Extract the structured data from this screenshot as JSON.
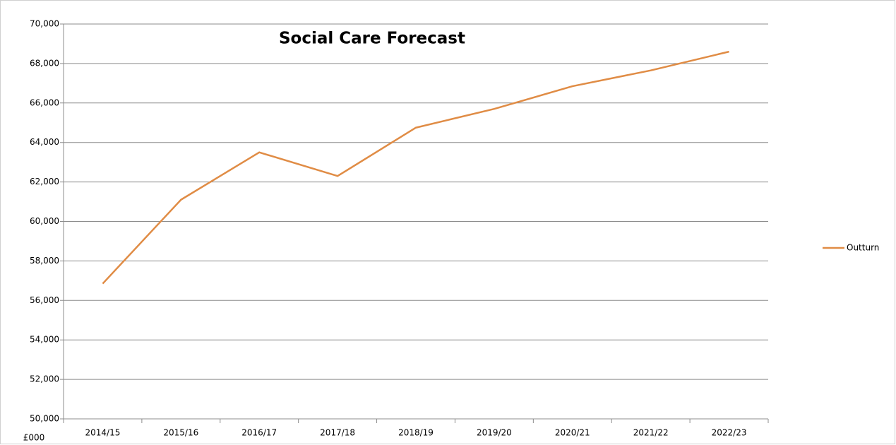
{
  "chart_data": {
    "type": "line",
    "title": "Social Care Forecast",
    "y_label": "£000",
    "categories": [
      "2014/15",
      "2015/16",
      "2016/17",
      "2017/18",
      "2018/19",
      "2019/20",
      "2020/21",
      "2021/22",
      "2022/23"
    ],
    "series": [
      {
        "name": "Outturn",
        "color": "#e08c45",
        "values": [
          56850,
          61100,
          63500,
          62300,
          64750,
          65700,
          66850,
          67650,
          68600
        ]
      }
    ],
    "ylim": [
      50000,
      70000
    ],
    "yticks": [
      {
        "value": 50000,
        "label": "50,000"
      },
      {
        "value": 52000,
        "label": "52,000"
      },
      {
        "value": 54000,
        "label": "54,000"
      },
      {
        "value": 56000,
        "label": "56,000"
      },
      {
        "value": 58000,
        "label": "58,000"
      },
      {
        "value": 60000,
        "label": "60,000"
      },
      {
        "value": 62000,
        "label": "62,000"
      },
      {
        "value": 64000,
        "label": "64,000"
      },
      {
        "value": 66000,
        "label": "66,000"
      },
      {
        "value": 68000,
        "label": "68,000"
      },
      {
        "value": 70000,
        "label": "70,000"
      }
    ],
    "grid": true,
    "legend": "right"
  }
}
